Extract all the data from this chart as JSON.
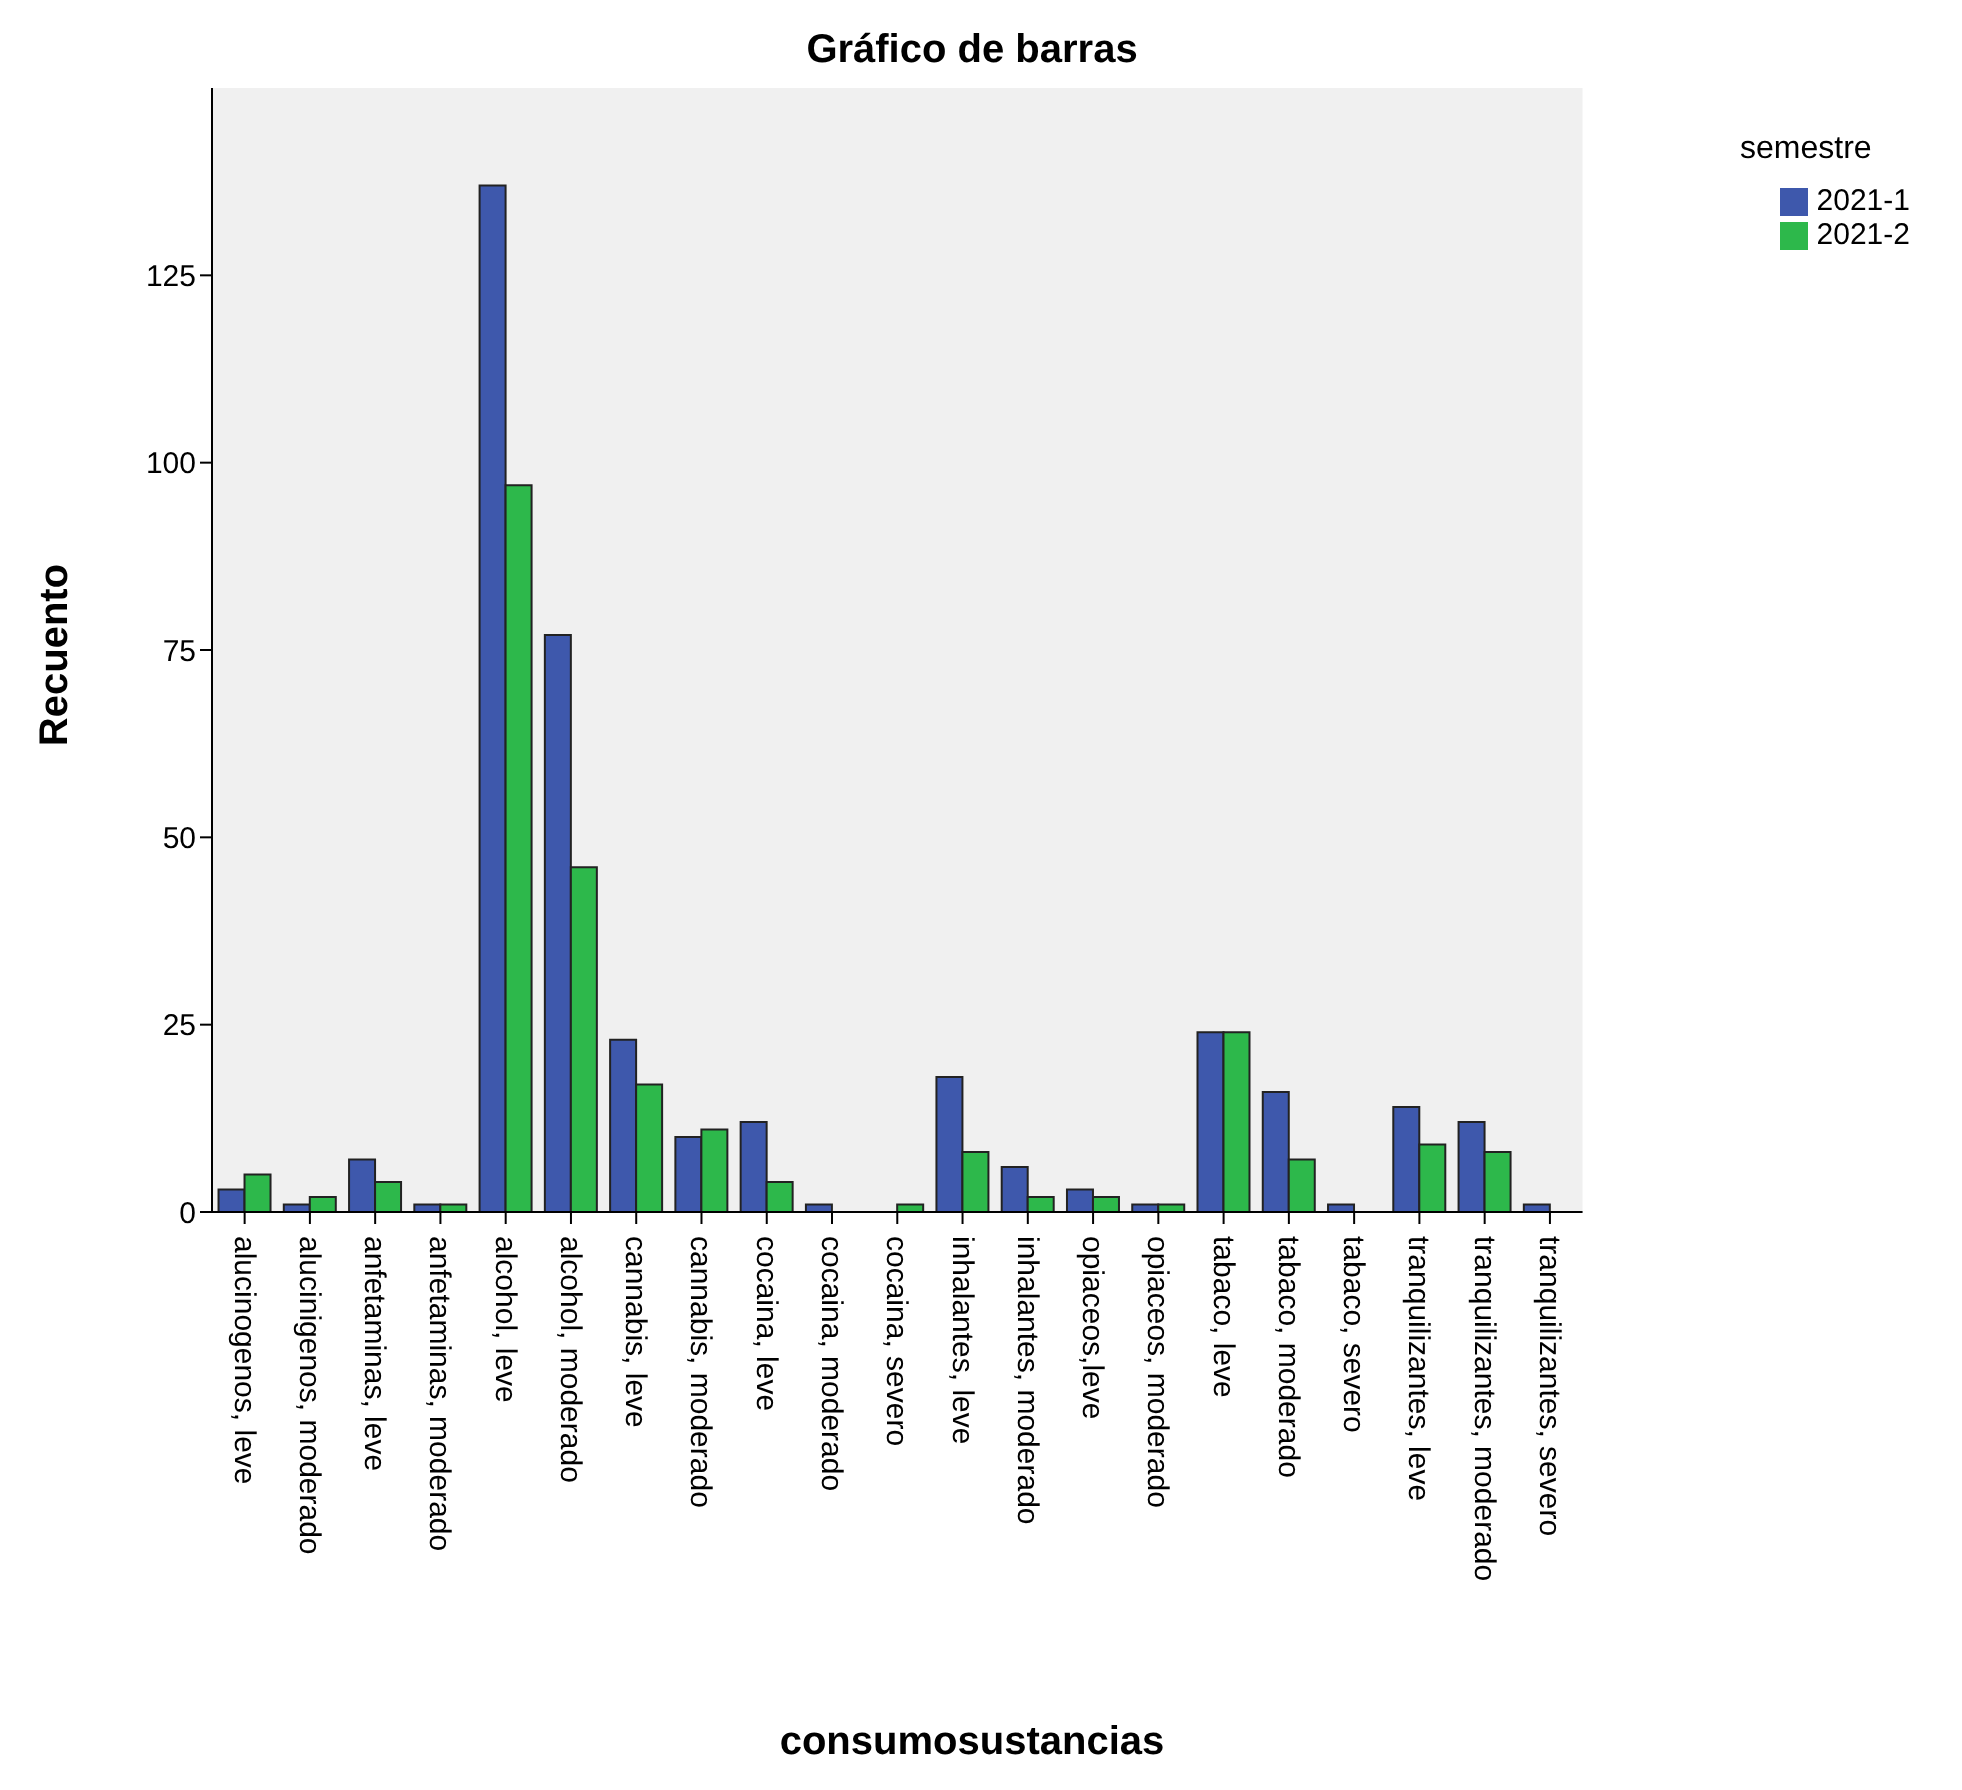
{
  "chart_data": {
    "type": "bar",
    "title": "Gráfico de barras",
    "xlabel": "consumosustancias",
    "ylabel": "Recuento",
    "legend_title": "semestre",
    "legend": "top right",
    "categories": [
      "alucinogenos, leve",
      "alucinigenos, moderado",
      "anfetaminas, leve",
      "anfetaminas, moderado",
      "alcohol, leve",
      "alcohol, moderado",
      "cannabis, leve",
      "cannabis, moderado",
      "cocaina, leve",
      "cocaina, moderado",
      "cocaina, severo",
      "inhalantes, leve",
      "inhalantes, moderado",
      "opiaceos,leve",
      "opiaceos, moderado",
      "tabaco, leve",
      "tabaco, moderado",
      "tabaco, severo",
      "tranquilizantes, leve",
      "tranquilizantes, moderado",
      "tranquilizantes, severo"
    ],
    "series": [
      {
        "name": "2021-1",
        "color": "#3e58ac",
        "values": [
          3,
          1,
          7,
          1,
          137,
          77,
          23,
          10,
          12,
          1,
          null,
          18,
          6,
          3,
          1,
          24,
          16,
          1,
          14,
          12,
          1
        ]
      },
      {
        "name": "2021-2",
        "color": "#2db84b",
        "values": [
          5,
          2,
          4,
          1,
          97,
          46,
          17,
          11,
          4,
          null,
          1,
          8,
          2,
          2,
          1,
          24,
          7,
          null,
          9,
          8,
          null
        ]
      }
    ],
    "ylim": [
      0,
      150
    ],
    "yticks": [
      0,
      25,
      50,
      75,
      100,
      125
    ]
  }
}
